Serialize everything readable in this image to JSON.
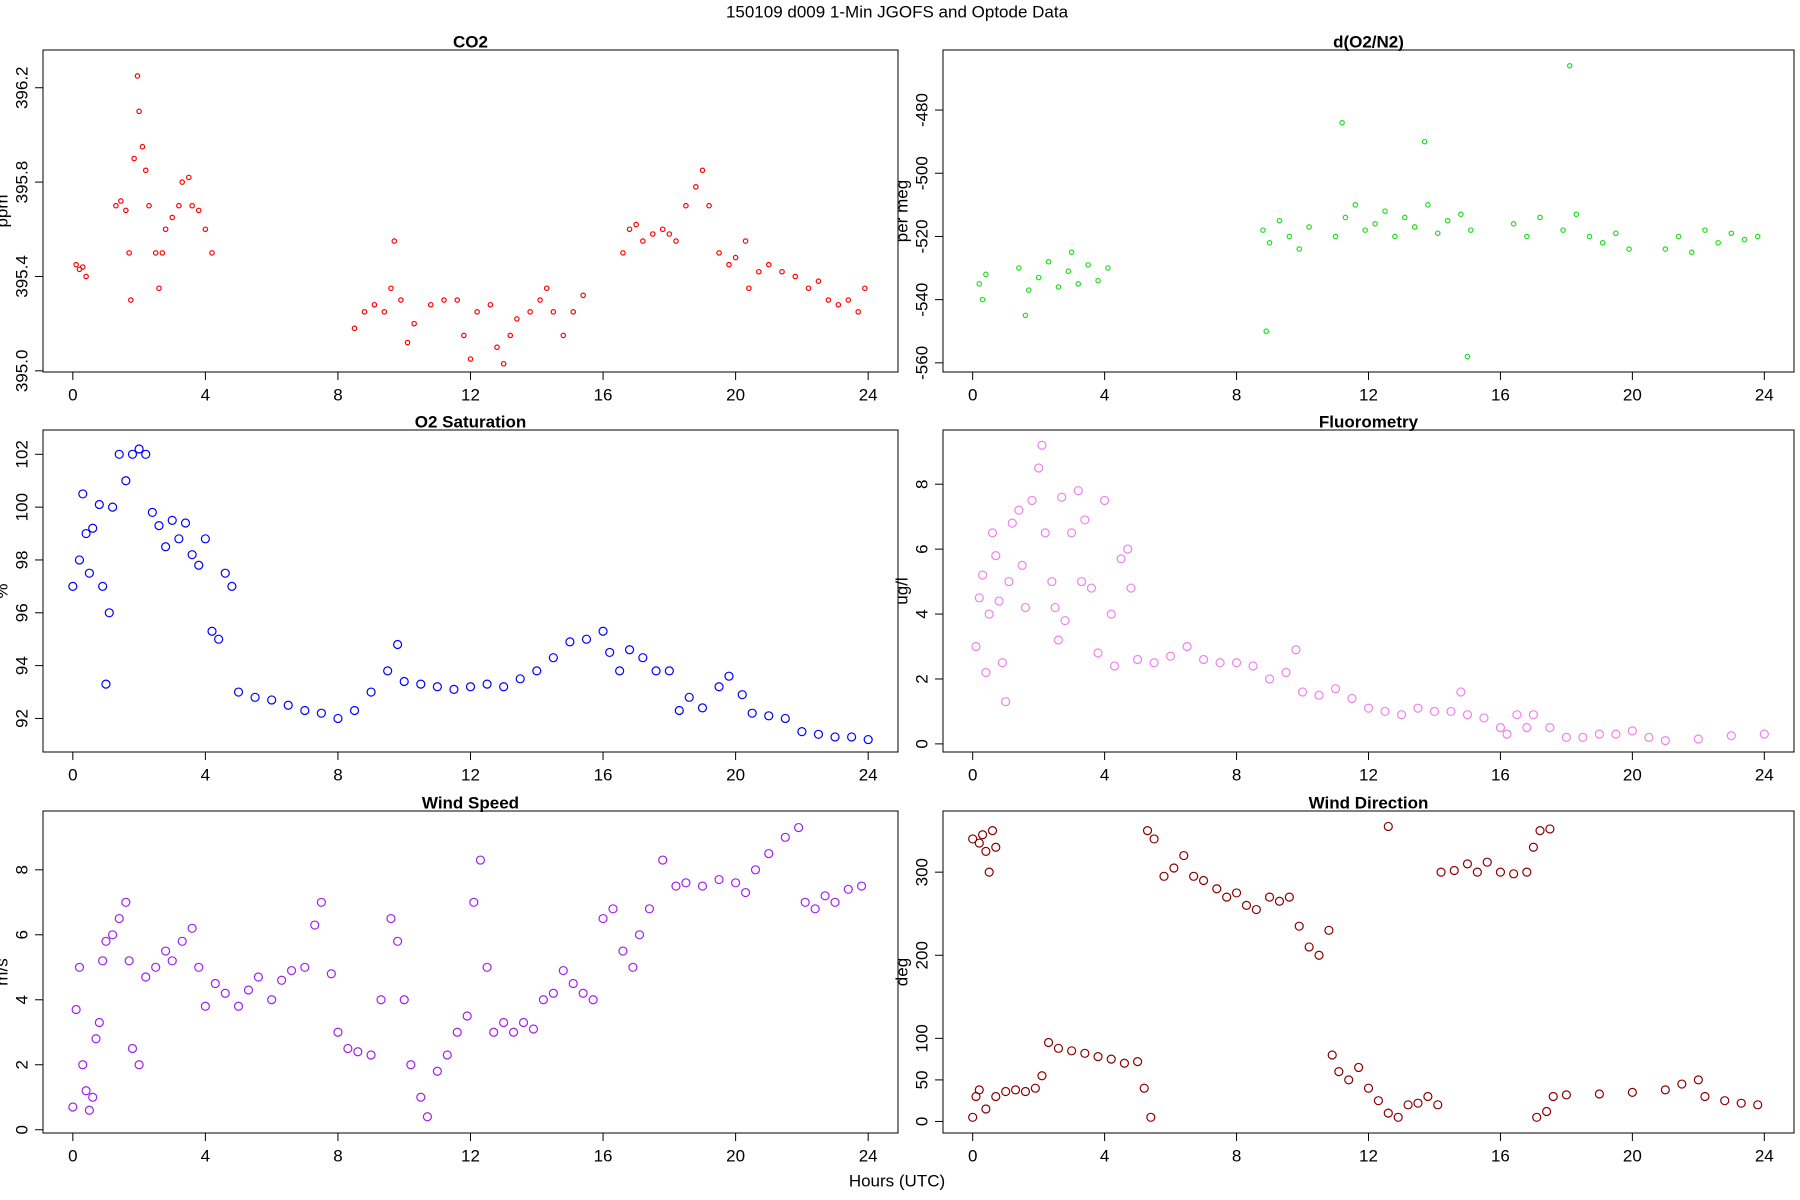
{
  "title": "150109   d009   1-Min  JGOFS and Optode Data",
  "xlabel": "Hours (UTC)",
  "chart_data": [
    {
      "type": "scatter",
      "title": "CO2",
      "ylabel": "ppm",
      "color": "#ff0000",
      "xlim": [
        -0.9,
        24.9
      ],
      "xticks": [
        0,
        4,
        8,
        12,
        16,
        20,
        24
      ],
      "ylim": [
        394.995,
        396.36
      ],
      "yticks": [
        {
          "value": 395.0,
          "label": "395.0"
        },
        395.4,
        395.8,
        396.2
      ],
      "x": [
        0.1,
        0.2,
        0.3,
        0.4,
        1.3,
        1.45,
        1.6,
        1.7,
        1.75,
        1.85,
        1.95,
        2.0,
        2.1,
        2.2,
        2.3,
        2.5,
        2.6,
        2.7,
        2.8,
        3.0,
        3.2,
        3.3,
        3.5,
        3.6,
        3.8,
        4.0,
        4.2,
        8.5,
        8.8,
        9.1,
        9.4,
        9.6,
        9.7,
        9.9,
        10.1,
        10.3,
        10.8,
        11.2,
        11.6,
        11.8,
        12.0,
        12.2,
        12.6,
        12.8,
        13.0,
        13.2,
        13.4,
        13.8,
        14.1,
        14.3,
        14.5,
        14.8,
        15.1,
        15.4,
        16.6,
        16.8,
        17.0,
        17.2,
        17.5,
        17.8,
        18.0,
        18.2,
        18.5,
        18.8,
        19.0,
        19.2,
        19.5,
        19.8,
        20.0,
        20.3,
        20.4,
        20.7,
        21.0,
        21.4,
        21.8,
        22.2,
        22.5,
        22.8,
        23.1,
        23.4,
        23.7,
        23.9
      ],
      "values": [
        395.45,
        395.43,
        395.44,
        395.4,
        395.7,
        395.72,
        395.68,
        395.5,
        395.3,
        395.9,
        396.25,
        396.1,
        395.95,
        395.85,
        395.7,
        395.5,
        395.35,
        395.5,
        395.6,
        395.65,
        395.7,
        395.8,
        395.82,
        395.7,
        395.68,
        395.6,
        395.5,
        395.18,
        395.25,
        395.28,
        395.25,
        395.35,
        395.55,
        395.3,
        395.12,
        395.2,
        395.28,
        395.3,
        395.3,
        395.15,
        395.05,
        395.25,
        395.28,
        395.1,
        395.03,
        395.15,
        395.22,
        395.25,
        395.3,
        395.35,
        395.25,
        395.15,
        395.25,
        395.32,
        395.5,
        395.6,
        395.62,
        395.55,
        395.58,
        395.6,
        395.58,
        395.55,
        395.7,
        395.78,
        395.85,
        395.7,
        395.5,
        395.45,
        395.48,
        395.55,
        395.35,
        395.42,
        395.45,
        395.42,
        395.4,
        395.35,
        395.38,
        395.3,
        395.28,
        395.3,
        395.25,
        395.35
      ]
    },
    {
      "type": "scatter",
      "title": "d(O2/N2)",
      "ylabel": "per meg",
      "color": "#22dd22",
      "xlim": [
        -0.9,
        24.9
      ],
      "xticks": [
        0,
        4,
        8,
        12,
        16,
        20,
        24
      ],
      "ylim": [
        -562.9,
        -461
      ],
      "yticks": [
        -560,
        -540,
        -520,
        -500,
        -480
      ],
      "x": [
        0.2,
        0.4,
        0.3,
        1.4,
        1.7,
        2.0,
        2.3,
        2.6,
        2.9,
        3.2,
        3.5,
        3.8,
        4.1,
        1.6,
        3.0,
        8.8,
        9.0,
        9.3,
        9.6,
        9.9,
        10.2,
        8.9,
        11.0,
        11.3,
        11.6,
        11.9,
        12.2,
        12.5,
        12.8,
        13.1,
        13.4,
        13.8,
        14.1,
        14.4,
        14.8,
        15.1,
        15.0,
        11.2,
        13.7,
        16.4,
        16.8,
        17.2,
        17.9,
        18.3,
        18.7,
        19.1,
        19.5,
        19.9,
        18.1,
        21.0,
        21.4,
        21.8,
        22.2,
        22.6,
        23.0,
        23.4,
        23.8
      ],
      "values": [
        -535,
        -532,
        -540,
        -530,
        -537,
        -533,
        -528,
        -536,
        -531,
        -535,
        -529,
        -534,
        -530,
        -545,
        -525,
        -518,
        -522,
        -515,
        -520,
        -524,
        -517,
        -550,
        -520,
        -514,
        -510,
        -518,
        -516,
        -512,
        -520,
        -514,
        -517,
        -510,
        -519,
        -515,
        -513,
        -518,
        -558,
        -484,
        -490,
        -516,
        -520,
        -514,
        -518,
        -513,
        -520,
        -522,
        -519,
        -524,
        -466,
        -524,
        -520,
        -525,
        -518,
        -522,
        -519,
        -521,
        -520
      ]
    },
    {
      "type": "scatter",
      "title": "O2 Saturation",
      "ylabel": "%",
      "color": "#0000ff",
      "xlim": [
        -0.9,
        24.9
      ],
      "xticks": [
        0,
        4,
        8,
        12,
        16,
        20,
        24
      ],
      "ylim": [
        90.73,
        102.92
      ],
      "yticks": [
        92,
        94,
        96,
        98,
        100,
        102
      ],
      "x": [
        0,
        0.2,
        0.3,
        0.4,
        0.5,
        0.6,
        0.8,
        0.9,
        1.0,
        1.1,
        1.2,
        1.4,
        1.6,
        1.8,
        2.0,
        2.2,
        2.4,
        2.6,
        2.8,
        3.0,
        3.2,
        3.4,
        3.6,
        3.8,
        4.0,
        4.2,
        4.4,
        4.6,
        4.8,
        5.0,
        5.5,
        6.0,
        6.5,
        7.0,
        7.5,
        8.0,
        8.5,
        9.0,
        9.5,
        9.8,
        10.0,
        10.5,
        11,
        11.5,
        12,
        12.5,
        13,
        13.5,
        14,
        14.5,
        15,
        15.5,
        16,
        16.2,
        16.5,
        16.8,
        17.2,
        17.6,
        18.0,
        18.3,
        18.6,
        19.0,
        19.5,
        19.8,
        20.2,
        20.5,
        21,
        21.5,
        22,
        22.5,
        23,
        23.5,
        24
      ],
      "values": [
        97.0,
        98,
        100.5,
        99,
        97.5,
        99.2,
        100.1,
        97,
        93.3,
        96,
        100,
        102,
        101,
        102,
        102.2,
        102,
        99.8,
        99.3,
        98.5,
        99.5,
        98.8,
        99.4,
        98.2,
        97.8,
        98.8,
        95.3,
        95,
        97.5,
        97,
        93,
        92.8,
        92.7,
        92.5,
        92.3,
        92.2,
        92,
        92.3,
        93,
        93.8,
        94.8,
        93.4,
        93.3,
        93.2,
        93.1,
        93.2,
        93.3,
        93.2,
        93.5,
        93.8,
        94.3,
        94.9,
        95.0,
        95.3,
        94.5,
        93.8,
        94.6,
        94.3,
        93.8,
        93.8,
        92.3,
        92.8,
        92.4,
        93.2,
        93.6,
        92.9,
        92.2,
        92.1,
        92.0,
        91.5,
        91.4,
        91.3,
        91.3,
        91.2
      ]
    },
    {
      "type": "scatter",
      "title": "Fluorometry",
      "ylabel": "ug/l",
      "color": "#ee82ee",
      "xlim": [
        -0.9,
        24.9
      ],
      "xticks": [
        0,
        4,
        8,
        12,
        16,
        20,
        24
      ],
      "ylim": [
        -0.25,
        9.67
      ],
      "yticks": [
        0,
        2,
        4,
        6,
        8
      ],
      "x": [
        0.1,
        0.2,
        0.3,
        0.4,
        0.5,
        0.6,
        0.7,
        0.8,
        0.9,
        1.0,
        1.1,
        1.2,
        1.4,
        1.5,
        1.6,
        1.8,
        2.0,
        2.1,
        2.2,
        2.4,
        2.5,
        2.6,
        2.7,
        2.8,
        3.0,
        3.2,
        3.3,
        3.4,
        3.6,
        3.8,
        4.0,
        4.2,
        4.3,
        4.5,
        4.7,
        4.8,
        5.0,
        5.5,
        6.0,
        6.5,
        7.0,
        7.5,
        8.0,
        8.5,
        9.0,
        9.5,
        9.8,
        10.0,
        10.5,
        11,
        11.5,
        12,
        12.5,
        13,
        13.5,
        14,
        14.5,
        14.8,
        15,
        15.5,
        16,
        16.2,
        16.5,
        16.8,
        17.0,
        17.5,
        18,
        18.5,
        19,
        19.5,
        20,
        20.5,
        21,
        22,
        23,
        24
      ],
      "values": [
        3,
        4.5,
        5.2,
        2.2,
        4,
        6.5,
        5.8,
        4.4,
        2.5,
        1.3,
        5,
        6.8,
        7.2,
        5.5,
        4.2,
        7.5,
        8.5,
        9.2,
        6.5,
        5,
        4.2,
        3.2,
        7.6,
        3.8,
        6.5,
        7.8,
        5,
        6.9,
        4.8,
        2.8,
        7.5,
        4,
        2.4,
        5.7,
        6,
        4.8,
        2.6,
        2.5,
        2.7,
        3.0,
        2.6,
        2.5,
        2.5,
        2.4,
        2.0,
        2.2,
        2.9,
        1.6,
        1.5,
        1.7,
        1.4,
        1.1,
        1.0,
        0.9,
        1.1,
        1.0,
        1.0,
        1.6,
        0.9,
        0.8,
        0.5,
        0.3,
        0.9,
        0.5,
        0.9,
        0.5,
        0.2,
        0.2,
        0.3,
        0.3,
        0.4,
        0.2,
        0.1,
        0.15,
        0.25,
        0.3
      ]
    },
    {
      "type": "scatter",
      "title": "Wind Speed",
      "ylabel": "m/s",
      "color": "#a020f0",
      "xlim": [
        -0.9,
        24.9
      ],
      "xticks": [
        0,
        4,
        8,
        12,
        16,
        20,
        24
      ],
      "ylim": [
        -0.1,
        9.81
      ],
      "yticks": [
        0,
        2,
        4,
        6,
        8
      ],
      "x": [
        0,
        0.1,
        0.2,
        0.3,
        0.4,
        0.5,
        0.6,
        0.7,
        0.8,
        0.9,
        1.0,
        1.2,
        1.4,
        1.6,
        1.7,
        1.8,
        2.0,
        2.2,
        2.5,
        2.8,
        3.0,
        3.3,
        3.6,
        3.8,
        4.0,
        4.3,
        4.6,
        5.0,
        5.3,
        5.6,
        6.0,
        6.3,
        6.6,
        7.0,
        7.3,
        7.5,
        7.8,
        8.0,
        8.3,
        8.6,
        9.0,
        9.3,
        9.6,
        9.8,
        10.0,
        10.2,
        10.5,
        10.7,
        11.0,
        11.3,
        11.6,
        11.9,
        12.1,
        12.3,
        12.5,
        12.7,
        13.0,
        13.3,
        13.6,
        13.9,
        14.2,
        14.5,
        14.8,
        15.1,
        15.4,
        15.7,
        16.0,
        16.3,
        16.6,
        16.9,
        17.1,
        17.4,
        17.8,
        18.2,
        18.5,
        19.0,
        19.5,
        20.0,
        20.3,
        20.6,
        21.0,
        21.5,
        21.9,
        22.1,
        22.4,
        22.7,
        23.0,
        23.4,
        23.8
      ],
      "values": [
        0.7,
        3.7,
        5.0,
        2.0,
        1.2,
        0.6,
        1.0,
        2.8,
        3.3,
        5.2,
        5.8,
        6.0,
        6.5,
        7.0,
        5.2,
        2.5,
        2.0,
        4.7,
        5.0,
        5.5,
        5.2,
        5.8,
        6.2,
        5.0,
        3.8,
        4.5,
        4.2,
        3.8,
        4.3,
        4.7,
        4.0,
        4.6,
        4.9,
        5.0,
        6.3,
        7.0,
        4.8,
        3.0,
        2.5,
        2.4,
        2.3,
        4.0,
        6.5,
        5.8,
        4.0,
        2.0,
        1.0,
        0.4,
        1.8,
        2.3,
        3.0,
        3.5,
        7.0,
        8.3,
        5.0,
        3.0,
        3.3,
        3.0,
        3.3,
        3.1,
        4.0,
        4.2,
        4.9,
        4.5,
        4.2,
        4.0,
        6.5,
        6.8,
        5.5,
        5.0,
        6.0,
        6.8,
        8.3,
        7.5,
        7.6,
        7.5,
        7.7,
        7.6,
        7.3,
        8.0,
        8.5,
        9.0,
        9.3,
        7.0,
        6.8,
        7.2,
        7.0,
        7.4,
        7.5
      ]
    },
    {
      "type": "scatter",
      "title": "Wind Direction",
      "ylabel": "deg",
      "color": "#8b0000",
      "xlim": [
        -0.9,
        24.9
      ],
      "xticks": [
        0,
        4,
        8,
        12,
        16,
        20,
        24
      ],
      "ylim": [
        -13.9,
        373.6
      ],
      "yticks": [
        0,
        50,
        100,
        200,
        300
      ],
      "x": [
        0,
        0.2,
        0.3,
        0.4,
        0.5,
        0.6,
        0.7,
        0.0,
        0.1,
        0.2,
        0.4,
        0.7,
        1.0,
        1.3,
        1.6,
        1.9,
        2.1,
        2.3,
        2.6,
        3.0,
        3.4,
        3.8,
        4.2,
        4.6,
        5.0,
        5.2,
        5.4,
        5.3,
        5.5,
        5.8,
        6.1,
        6.4,
        6.7,
        7.0,
        7.4,
        7.7,
        8.0,
        8.3,
        8.6,
        9.0,
        9.3,
        9.6,
        9.9,
        10.2,
        10.5,
        10.8,
        10.9,
        11.1,
        11.4,
        11.7,
        12.0,
        12.3,
        12.6,
        12.9,
        13.2,
        13.5,
        13.8,
        14.1,
        12.6,
        14.2,
        14.6,
        15.0,
        15.3,
        15.6,
        16.0,
        16.4,
        16.8,
        17.0,
        17.2,
        17.5,
        17.1,
        17.4,
        17.6,
        18,
        19,
        20,
        21,
        21.5,
        22.0,
        22.2,
        22.8,
        23.3,
        23.8
      ],
      "values": [
        340,
        335,
        345,
        325,
        300,
        350,
        330,
        5,
        30,
        38,
        15,
        30,
        36,
        38,
        36,
        40,
        55,
        95,
        88,
        85,
        82,
        78,
        75,
        70,
        72,
        40,
        5,
        350,
        340,
        295,
        305,
        320,
        295,
        290,
        280,
        270,
        275,
        260,
        255,
        270,
        265,
        270,
        235,
        210,
        200,
        230,
        80,
        60,
        50,
        65,
        40,
        25,
        10,
        5,
        20,
        22,
        30,
        20,
        355,
        300,
        302,
        310,
        300,
        312,
        300,
        298,
        300,
        330,
        350,
        352,
        5,
        12,
        30,
        32,
        33,
        35,
        38,
        45,
        50,
        30,
        25,
        22,
        20
      ]
    }
  ]
}
